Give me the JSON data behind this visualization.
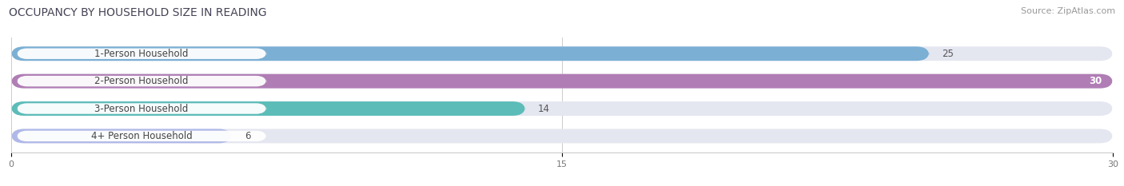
{
  "title": "OCCUPANCY BY HOUSEHOLD SIZE IN READING",
  "source": "Source: ZipAtlas.com",
  "categories": [
    "1-Person Household",
    "2-Person Household",
    "3-Person Household",
    "4+ Person Household"
  ],
  "values": [
    25,
    30,
    14,
    6
  ],
  "bar_colors": [
    "#7bafd4",
    "#b07db5",
    "#5bbcb8",
    "#b0b8e8"
  ],
  "bar_bg_color": "#e4e6f0",
  "label_bg_color": "#ffffff",
  "xlim": [
    0,
    30
  ],
  "xticks": [
    0,
    15,
    30
  ],
  "title_fontsize": 10,
  "label_fontsize": 8.5,
  "value_fontsize": 8.5,
  "source_fontsize": 8,
  "bar_height": 0.52,
  "figsize": [
    14.06,
    2.33
  ],
  "dpi": 100
}
